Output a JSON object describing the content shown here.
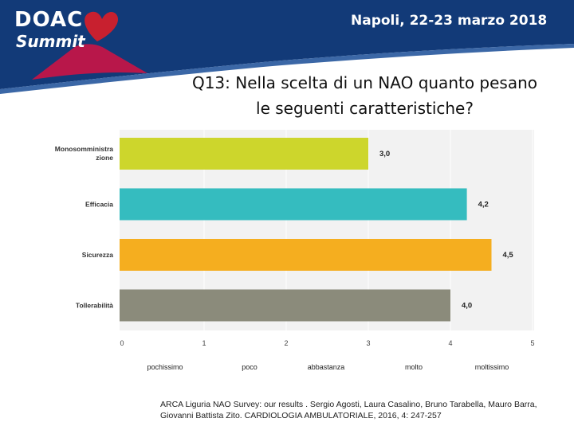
{
  "header": {
    "logo_line1": "DOAC",
    "logo_line2": "Summit",
    "event": "Napoli, 22-23 marzo 2018",
    "colors": {
      "banner": "#123a78",
      "stripe": "#3b67a6",
      "heart": "#c8202f",
      "volcano": "#b8174a"
    }
  },
  "slide_title": "Q13: Nella scelta di un NAO quanto pesano\nle seguenti caratteristiche?",
  "chart_data": {
    "type": "bar",
    "orientation": "horizontal",
    "title": "",
    "xlabel": "",
    "ylabel": "",
    "categories": [
      "Monosomministrazione",
      "Efficacia",
      "Sicurezza",
      "Tollerabilità"
    ],
    "category_labels_display": [
      [
        "Monosomministra",
        "zione"
      ],
      [
        "Efficacia"
      ],
      [
        "Sicurezza"
      ],
      [
        "Tollerabilità"
      ]
    ],
    "values": [
      3.0,
      4.2,
      4.5,
      4.0
    ],
    "value_labels": [
      "3,0",
      "4,2",
      "4,5",
      "4,0"
    ],
    "colors": [
      "#cdd62c",
      "#35bcbf",
      "#f5ae1f",
      "#8b8b7b"
    ],
    "xlim": [
      0,
      5
    ],
    "xticks": [
      "0",
      "1",
      "2",
      "3",
      "4",
      "5"
    ],
    "grid": true,
    "background": "#f2f2f2"
  },
  "scale_labels": [
    "pochissimo",
    "poco",
    "abbastanza",
    "molto",
    "moltissimo"
  ],
  "citation": "ARCA Liguria NAO Survey: our results . Sergio Agosti, Laura Casalino, Bruno Tarabella, Mauro Barra, Giovanni Battista Zito. CARDIOLOGIA AMBULATORIALE, 2016, 4: 247-257"
}
